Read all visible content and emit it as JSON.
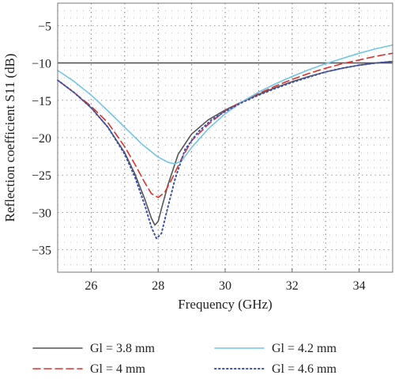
{
  "chart_data": {
    "type": "line",
    "title": "",
    "xlabel": "Frequency (GHz)",
    "ylabel": "Reflection coefficient S11 (dB)",
    "xlim": [
      25,
      35
    ],
    "ylim": [
      -38,
      -2
    ],
    "x_ticks": [
      26,
      28,
      30,
      32,
      34
    ],
    "y_ticks": [
      -5,
      -10,
      -15,
      -20,
      -25,
      -30,
      -35
    ],
    "grid": true,
    "reference_line": {
      "y": -10,
      "color": "#555555"
    },
    "legend_position": "below",
    "series": [
      {
        "name": "Gl = 3.8 mm",
        "color": "#555555",
        "dash": "solid",
        "x": [
          25,
          25.5,
          26,
          26.5,
          27,
          27.3,
          27.6,
          27.8,
          27.9,
          28.0,
          28.1,
          28.3,
          28.6,
          29,
          29.5,
          30,
          30.5,
          31,
          31.5,
          32,
          32.5,
          33,
          33.5,
          34,
          34.5,
          35
        ],
        "y": [
          -12.3,
          -14.0,
          -16.0,
          -18.6,
          -22.0,
          -24.8,
          -28.2,
          -30.8,
          -31.7,
          -31.2,
          -29.5,
          -26.2,
          -22.2,
          -19.5,
          -17.6,
          -16.3,
          -15.2,
          -14.2,
          -13.3,
          -12.5,
          -11.8,
          -11.2,
          -10.7,
          -10.3,
          -10.0,
          -9.8
        ]
      },
      {
        "name": "Gl = 4 mm",
        "color": "#e0312b",
        "dash": "dashed",
        "x": [
          25,
          25.5,
          26,
          26.5,
          27,
          27.3,
          27.6,
          27.8,
          28.0,
          28.2,
          28.4,
          28.7,
          29,
          29.5,
          30,
          30.5,
          31,
          31.5,
          32,
          32.5,
          33,
          33.5,
          34,
          34.5,
          35
        ],
        "y": [
          -12.3,
          -14.0,
          -15.8,
          -18.0,
          -21.2,
          -23.5,
          -26.0,
          -27.5,
          -28.0,
          -27.3,
          -25.6,
          -22.8,
          -20.4,
          -18.2,
          -16.4,
          -15.2,
          -14.1,
          -13.1,
          -12.2,
          -11.4,
          -10.7,
          -10.1,
          -9.6,
          -9.1,
          -8.7
        ]
      },
      {
        "name": "Gl = 4.2 mm",
        "color": "#6ec6ea",
        "dash": "solid",
        "x": [
          25,
          25.5,
          26,
          26.5,
          27,
          27.5,
          28,
          28.3,
          28.5,
          28.7,
          29,
          29.5,
          30,
          30.5,
          31,
          31.5,
          32,
          32.5,
          33,
          33.5,
          34,
          34.5,
          35
        ],
        "y": [
          -11.0,
          -12.5,
          -14.3,
          -16.4,
          -18.6,
          -20.8,
          -22.6,
          -23.3,
          -23.5,
          -23.1,
          -21.3,
          -18.8,
          -16.8,
          -15.2,
          -13.9,
          -12.8,
          -11.8,
          -10.9,
          -10.1,
          -9.4,
          -8.7,
          -8.1,
          -7.6
        ]
      },
      {
        "name": "Gl = 4.6 mm",
        "color": "#3a4fb5",
        "dash": "dotted",
        "x": [
          25,
          25.5,
          26,
          26.5,
          27,
          27.3,
          27.6,
          27.8,
          27.95,
          28.1,
          28.25,
          28.5,
          28.8,
          29.2,
          29.6,
          30,
          30.5,
          31,
          31.5,
          32,
          32.5,
          33,
          33.5,
          34,
          34.5,
          35
        ],
        "y": [
          -12.3,
          -14.0,
          -16.0,
          -18.6,
          -22.2,
          -25.2,
          -29.0,
          -32.0,
          -33.5,
          -32.8,
          -30.0,
          -25.6,
          -21.6,
          -19.2,
          -17.6,
          -16.5,
          -15.3,
          -14.3,
          -13.4,
          -12.6,
          -11.9,
          -11.2,
          -10.7,
          -10.3,
          -10.0,
          -9.8
        ]
      }
    ]
  }
}
